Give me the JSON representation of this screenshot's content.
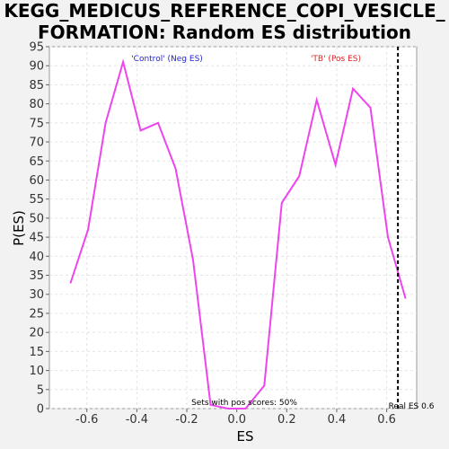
{
  "title_line1": "KEGG_MEDICUS_REFERENCE_COPI_VESICLE_",
  "title_line2": "FORMATION: Random ES distribution",
  "chart_data": {
    "type": "line",
    "xlabel": "ES",
    "ylabel": "P(ES)",
    "xlim": [
      -0.75,
      0.72
    ],
    "ylim": [
      0,
      95
    ],
    "xticks": [
      -0.6,
      -0.4,
      -0.2,
      0.0,
      0.2,
      0.4,
      0.6
    ],
    "xtick_labels": [
      "-0.6",
      "-0.4",
      "-0.2",
      "0.0",
      "0.2",
      "0.4",
      "0.6"
    ],
    "yticks": [
      0,
      5,
      10,
      15,
      20,
      25,
      30,
      35,
      40,
      45,
      50,
      55,
      60,
      65,
      70,
      75,
      80,
      85,
      90,
      95
    ],
    "grid": true,
    "series": [
      {
        "color": "#ee44ee",
        "x": [
          -0.665,
          -0.595,
          -0.525,
          -0.455,
          -0.385,
          -0.315,
          -0.245,
          -0.175,
          -0.105,
          -0.035,
          0.035,
          0.11,
          0.18,
          0.25,
          0.32,
          0.395,
          0.465,
          0.535,
          0.605,
          0.675
        ],
        "y": [
          33,
          47,
          75,
          91,
          73,
          75,
          63,
          39,
          1,
          0,
          0,
          6,
          54,
          61,
          81,
          64,
          84,
          79,
          45,
          29
        ]
      }
    ],
    "real_es": {
      "x": 0.645,
      "label": "Real ES 0.6"
    },
    "annotations": {
      "neg": {
        "text": "'Control' (Neg ES)",
        "color": "#2222cc"
      },
      "pos": {
        "text": "'TB' (Pos ES)",
        "color": "#dd2222"
      },
      "sets": {
        "text": "Sets with pos scores: 50%",
        "color": "#000000"
      }
    }
  }
}
